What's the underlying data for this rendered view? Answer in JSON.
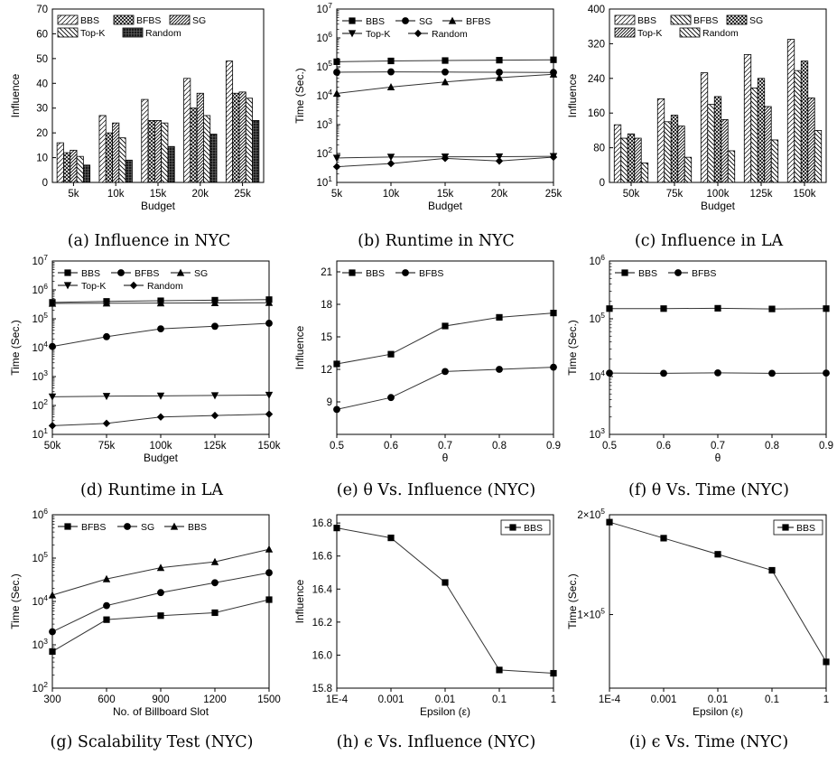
{
  "chart_data": [
    {
      "id": "a",
      "type": "bar",
      "caption": "(a) Influence in NYC",
      "xlabel": "Budget",
      "ylabel": "Influence",
      "categories": [
        "5k",
        "10k",
        "15k",
        "20k",
        "25k"
      ],
      "ylim": [
        0,
        70
      ],
      "yticks": [
        0,
        10,
        20,
        30,
        40,
        50,
        60,
        70
      ],
      "series": [
        {
          "name": "BBS",
          "pattern": "diag-light",
          "values": [
            16,
            27,
            33.5,
            42,
            49
          ]
        },
        {
          "name": "BFBS",
          "pattern": "cross",
          "values": [
            12,
            20,
            25,
            30,
            36
          ]
        },
        {
          "name": "SG",
          "pattern": "diag-dense",
          "values": [
            13,
            24,
            25,
            36,
            36.5
          ]
        },
        {
          "name": "Top-K",
          "pattern": "diag-rev",
          "values": [
            10.5,
            18,
            24,
            27,
            34
          ]
        },
        {
          "name": "Random",
          "pattern": "dark-grid",
          "values": [
            7,
            9,
            14.5,
            19.5,
            25
          ]
        }
      ],
      "legend_rows": [
        [
          "BBS",
          "BFBS",
          "SG"
        ],
        [
          "Top-K",
          "Random"
        ]
      ]
    },
    {
      "id": "b",
      "type": "line",
      "caption": "(b) Runtime in NYC",
      "xlabel": "Budget",
      "ylabel": "Time (Sec.)",
      "scale": "log",
      "categories": [
        "5k",
        "10k",
        "15k",
        "20k",
        "25k"
      ],
      "ylim": [
        10,
        10000000
      ],
      "yticks": [
        {
          "v": 10,
          "e": "1"
        },
        {
          "v": 100,
          "e": "2"
        },
        {
          "v": 1000,
          "e": "3"
        },
        {
          "v": 10000,
          "e": "4"
        },
        {
          "v": 100000,
          "e": "5"
        },
        {
          "v": 1000000,
          "e": "6"
        },
        {
          "v": 10000000,
          "e": "7"
        }
      ],
      "series": [
        {
          "name": "BBS",
          "marker": "square",
          "values": [
            150000,
            160000,
            165000,
            170000,
            175000
          ]
        },
        {
          "name": "SG",
          "marker": "circle",
          "values": [
            65000,
            67000,
            66000,
            65000,
            64000
          ]
        },
        {
          "name": "BFBS",
          "marker": "triangle",
          "values": [
            12000,
            20000,
            30000,
            42000,
            55000
          ]
        },
        {
          "name": "Top-K",
          "marker": "tri-down",
          "values": [
            70,
            76,
            77,
            78,
            80
          ]
        },
        {
          "name": "Random",
          "marker": "diamond",
          "values": [
            35,
            45,
            68,
            55,
            75
          ]
        }
      ],
      "legend_rows": [
        [
          "BBS",
          "SG",
          "BFBS"
        ],
        [
          "Top-K",
          "Random"
        ]
      ]
    },
    {
      "id": "c",
      "type": "bar",
      "caption": "(c) Influence in LA",
      "xlabel": "Budget",
      "ylabel": "Influence",
      "categories": [
        "50k",
        "75k",
        "100k",
        "125k",
        "150k"
      ],
      "ylim": [
        0,
        400
      ],
      "yticks": [
        0,
        80,
        160,
        240,
        320,
        400
      ],
      "series": [
        {
          "name": "BBS",
          "pattern": "diag-light",
          "values": [
            133,
            193,
            253,
            295,
            330
          ]
        },
        {
          "name": "BFBS",
          "pattern": "diag-rev",
          "values": [
            102,
            140,
            180,
            218,
            258
          ]
        },
        {
          "name": "SG",
          "pattern": "cross",
          "values": [
            112,
            155,
            198,
            240,
            280
          ]
        },
        {
          "name": "Top-K",
          "pattern": "diag-dense",
          "values": [
            102,
            130,
            145,
            175,
            195
          ]
        },
        {
          "name": "Random",
          "pattern": "diag-rev",
          "values": [
            45,
            58,
            73,
            98,
            120
          ]
        }
      ],
      "legend_rows": [
        [
          "BBS",
          "BFBS",
          "SG"
        ],
        [
          "Top-K",
          "Random"
        ]
      ]
    },
    {
      "id": "d",
      "type": "line",
      "caption": "(d) Runtime in LA",
      "xlabel": "Budget",
      "ylabel": "Time (Sec.)",
      "scale": "log",
      "categories": [
        "50k",
        "75k",
        "100k",
        "125k",
        "150k"
      ],
      "ylim": [
        10,
        10000000
      ],
      "yticks": [
        {
          "v": 10,
          "e": "1"
        },
        {
          "v": 100,
          "e": "2"
        },
        {
          "v": 1000,
          "e": "3"
        },
        {
          "v": 10000,
          "e": "4"
        },
        {
          "v": 100000,
          "e": "5"
        },
        {
          "v": 1000000,
          "e": "6"
        },
        {
          "v": 10000000,
          "e": "7"
        }
      ],
      "series": [
        {
          "name": "BBS",
          "marker": "square",
          "values": [
            370000,
            400000,
            420000,
            440000,
            460000
          ]
        },
        {
          "name": "BFBS",
          "marker": "circle",
          "values": [
            11000,
            24000,
            45000,
            55000,
            70000
          ]
        },
        {
          "name": "SG",
          "marker": "triangle",
          "values": [
            340000,
            345000,
            350000,
            355000,
            360000
          ]
        },
        {
          "name": "Top-K",
          "marker": "tri-down",
          "values": [
            200,
            210,
            215,
            222,
            230
          ]
        },
        {
          "name": "Random",
          "marker": "diamond",
          "values": [
            20,
            24,
            40,
            45,
            50
          ]
        }
      ],
      "legend_rows": [
        [
          "BBS",
          "BFBS",
          "SG"
        ],
        [
          "Top-K",
          "Random"
        ]
      ]
    },
    {
      "id": "e",
      "type": "line",
      "caption": "(e) θ Vs. Influence (NYC)",
      "xlabel": "θ",
      "ylabel": "Influence",
      "scale": "linear",
      "categories": [
        "0.5",
        "0.6",
        "0.7",
        "0.8",
        "0.9"
      ],
      "ylim": [
        6,
        22
      ],
      "yticks": [
        9,
        12,
        15,
        18,
        21
      ],
      "series": [
        {
          "name": "BBS",
          "marker": "square",
          "values": [
            12.5,
            13.4,
            16,
            16.8,
            17.2
          ]
        },
        {
          "name": "BFBS",
          "marker": "circle",
          "values": [
            8.3,
            9.4,
            11.8,
            12,
            12.2
          ]
        }
      ],
      "legend_rows": [
        [
          "BBS",
          "BFBS"
        ]
      ]
    },
    {
      "id": "f",
      "type": "line",
      "caption": "(f) θ Vs. Time (NYC)",
      "xlabel": "θ",
      "ylabel": "Time (Sec.)",
      "scale": "log",
      "categories": [
        "0.5",
        "0.6",
        "0.7",
        "0.8",
        "0.9"
      ],
      "ylim": [
        1000,
        1000000
      ],
      "yticks": [
        {
          "v": 1000,
          "e": "3"
        },
        {
          "v": 10000,
          "e": "4"
        },
        {
          "v": 100000,
          "e": "5"
        },
        {
          "v": 1000000,
          "e": "6"
        }
      ],
      "series": [
        {
          "name": "BBS",
          "marker": "square",
          "values": [
            150000,
            150000,
            152000,
            148000,
            150000
          ]
        },
        {
          "name": "BFBS",
          "marker": "circle",
          "values": [
            11500,
            11400,
            11600,
            11400,
            11500
          ]
        }
      ],
      "legend_rows": [
        [
          "BBS",
          "BFBS"
        ]
      ]
    },
    {
      "id": "g",
      "type": "line",
      "caption": "(g) Scalability Test (NYC)",
      "xlabel": "No. of Billboard Slot",
      "ylabel": "Time (Sec.)",
      "scale": "log",
      "categories": [
        "300",
        "600",
        "900",
        "1200",
        "1500"
      ],
      "ylim": [
        100,
        1000000
      ],
      "yticks": [
        {
          "v": 100,
          "e": "2"
        },
        {
          "v": 1000,
          "e": "3"
        },
        {
          "v": 10000,
          "e": "4"
        },
        {
          "v": 100000,
          "e": "5"
        },
        {
          "v": 1000000,
          "e": "6"
        }
      ],
      "series": [
        {
          "name": "BFBS",
          "marker": "square",
          "values": [
            700,
            3800,
            4700,
            5500,
            11000
          ]
        },
        {
          "name": "SG",
          "marker": "circle",
          "values": [
            2000,
            8000,
            16000,
            27000,
            46000
          ]
        },
        {
          "name": "BBS",
          "marker": "triangle",
          "values": [
            14000,
            33000,
            60000,
            82000,
            160000
          ]
        }
      ],
      "legend_rows": [
        [
          "BFBS",
          "SG",
          "BBS"
        ]
      ]
    },
    {
      "id": "h",
      "type": "line",
      "caption": "(h) ϵ Vs. Influence (NYC)",
      "xlabel": "Epsilon (ε)",
      "ylabel": "Influence",
      "scale": "linear",
      "categories": [
        "1E-4",
        "0.001",
        "0.01",
        "0.1",
        "1"
      ],
      "ylim": [
        15.8,
        16.85
      ],
      "yticks": [
        15.8,
        16.0,
        16.2,
        16.4,
        16.6,
        16.8
      ],
      "series": [
        {
          "name": "BBS",
          "marker": "square",
          "values": [
            16.77,
            16.71,
            16.44,
            15.91,
            15.89
          ]
        }
      ],
      "legend_rows": [
        [
          "BBS"
        ]
      ],
      "legend_box": true
    },
    {
      "id": "i",
      "type": "line",
      "caption": "(i) ϵ Vs. Time (NYC)",
      "xlabel": "Epsilon (ε)",
      "ylabel": "Time (Sec.)",
      "scale": "log",
      "categories": [
        "1E-4",
        "0.001",
        "0.01",
        "0.1",
        "1"
      ],
      "ylim": [
        60000,
        200000
      ],
      "yticks": [
        {
          "v": 100000,
          "label": "1×10",
          "e": "5"
        },
        {
          "v": 200000,
          "label": "2×10",
          "e": "5"
        }
      ],
      "tick_style": "log-repeated",
      "series": [
        {
          "name": "BBS",
          "marker": "square",
          "values": [
            190000,
            170000,
            152000,
            136000,
            72000
          ]
        }
      ],
      "legend_rows": [
        [
          "BBS"
        ]
      ],
      "legend_box": true
    }
  ]
}
